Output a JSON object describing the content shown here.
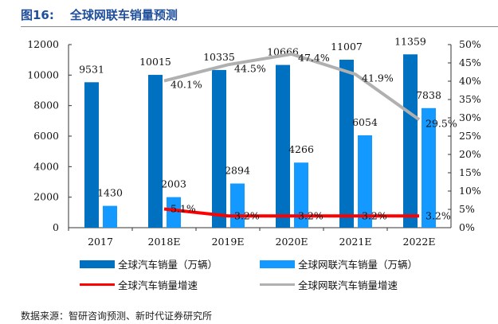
{
  "header": {
    "figure_no": "图16:",
    "title": "全球网联车销量预测"
  },
  "chart_data": {
    "type": "bar",
    "categories": [
      "2017",
      "2018E",
      "2019E",
      "2020E",
      "2021E",
      "2022E"
    ],
    "series": [
      {
        "name": "全球汽车销量（万辆）",
        "kind": "bar",
        "axis": "left",
        "color": "#0070c0",
        "values": [
          9531,
          10015,
          10335,
          10666,
          11007,
          11359
        ]
      },
      {
        "name": "全球网联汽车销量（万辆）",
        "kind": "bar",
        "axis": "left",
        "color": "#1399ff",
        "values": [
          1430,
          2003,
          2894,
          4266,
          6054,
          7838
        ]
      },
      {
        "name": "全球汽车销量增速",
        "kind": "line",
        "axis": "right",
        "color": "#ff0000",
        "values": [
          null,
          5.1,
          3.2,
          3.2,
          3.2,
          3.2
        ],
        "labels": [
          "",
          "5.1%",
          "3.2%",
          "3.2%",
          "3.2%",
          "3.2%"
        ]
      },
      {
        "name": "全球网联汽车销量增速",
        "kind": "line",
        "axis": "right",
        "color": "#b0b0b0",
        "values": [
          null,
          40.1,
          44.5,
          47.4,
          41.9,
          29.5
        ],
        "labels": [
          "",
          "40.1%",
          "44.5%",
          "47.4%",
          "41.9%",
          "29.5%"
        ]
      }
    ],
    "ylim": [
      0,
      12000
    ],
    "yticks": [
      "0",
      "2000",
      "4000",
      "6000",
      "8000",
      "10000",
      "12000"
    ],
    "y2lim": [
      0,
      50
    ],
    "y2ticks": [
      "0%",
      "5%",
      "10%",
      "15%",
      "20%",
      "25%",
      "30%",
      "35%",
      "40%",
      "45%",
      "50%"
    ],
    "legend": "bottom"
  },
  "source": "数据来源：智研咨询预测、新时代证券研究所"
}
